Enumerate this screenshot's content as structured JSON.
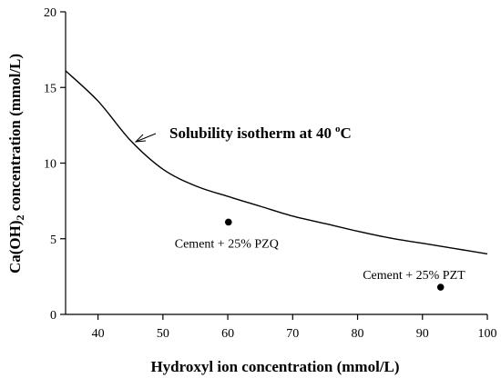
{
  "chart_data": {
    "type": "scatter",
    "title": "",
    "xlabel": "Hydroxyl ion concentration (mmol/L)",
    "ylabel_main": "Ca(OH)",
    "ylabel_sub": "2",
    "ylabel_rest": " concentration (mmol/L)",
    "xlim": [
      35,
      100
    ],
    "ylim": [
      0,
      20
    ],
    "xticks": [
      40,
      50,
      60,
      70,
      80,
      90,
      100
    ],
    "yticks": [
      0,
      5,
      10,
      15,
      20
    ],
    "grid": false,
    "series": [
      {
        "kind": "line",
        "label": "Solubility isotherm at 40",
        "label_sup": "o",
        "label_tail": "C",
        "x": [
          35,
          40,
          45,
          50,
          55,
          60,
          65,
          70,
          75,
          80,
          85,
          90,
          95,
          100
        ],
        "y": [
          16.1,
          14.1,
          11.5,
          9.6,
          8.5,
          7.8,
          7.15,
          6.5,
          6.0,
          5.5,
          5.05,
          4.7,
          4.35,
          4.0
        ]
      },
      {
        "kind": "points",
        "points": [
          {
            "x": 60.1,
            "y": 6.1,
            "label": "Cement + 25% PZQ"
          },
          {
            "x": 92.8,
            "y": 1.8,
            "label": "Cement + 25% PZT"
          }
        ]
      }
    ]
  }
}
